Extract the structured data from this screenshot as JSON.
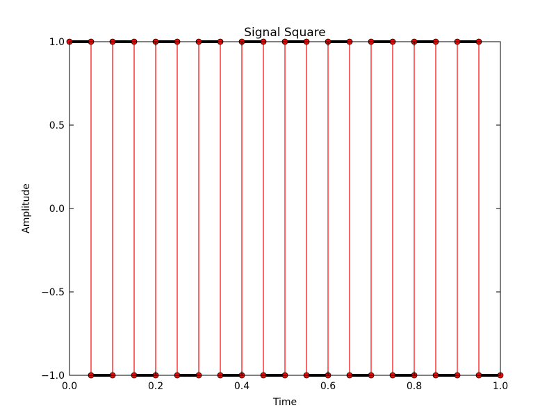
{
  "chart_data": {
    "type": "line",
    "title": "Signal Square",
    "xlabel": "Time",
    "ylabel": "Amplitude",
    "xlim": [
      0.0,
      1.0
    ],
    "ylim": [
      -1.0,
      1.0
    ],
    "x_ticks": [
      0.0,
      0.2,
      0.4,
      0.6,
      0.8,
      1.0
    ],
    "x_tick_labels": [
      "0.0",
      "0.2",
      "0.4",
      "0.6",
      "0.8",
      "1.0"
    ],
    "y_ticks": [
      1.0,
      0.5,
      0.0,
      -0.5,
      -1.0
    ],
    "y_tick_labels": [
      "1.0",
      "0.5",
      "0.0",
      "−0.5",
      "−1.0"
    ],
    "grid": false,
    "legend": "none",
    "series": [
      {
        "line_color": "#ff0000",
        "marker_color": "#ff0000",
        "marker": "circle",
        "x": [
          0.0,
          0.05,
          0.1,
          0.15,
          0.2,
          0.25,
          0.3,
          0.35,
          0.4,
          0.45,
          0.5,
          0.55,
          0.6,
          0.65,
          0.7,
          0.75,
          0.8,
          0.85,
          0.9,
          0.95,
          1.0
        ],
        "y": [
          1,
          -1,
          1,
          -1,
          1,
          -1,
          1,
          -1,
          1,
          -1,
          1,
          -1,
          1,
          -1,
          1,
          -1,
          1,
          -1,
          1,
          -1,
          -1
        ]
      }
    ]
  }
}
